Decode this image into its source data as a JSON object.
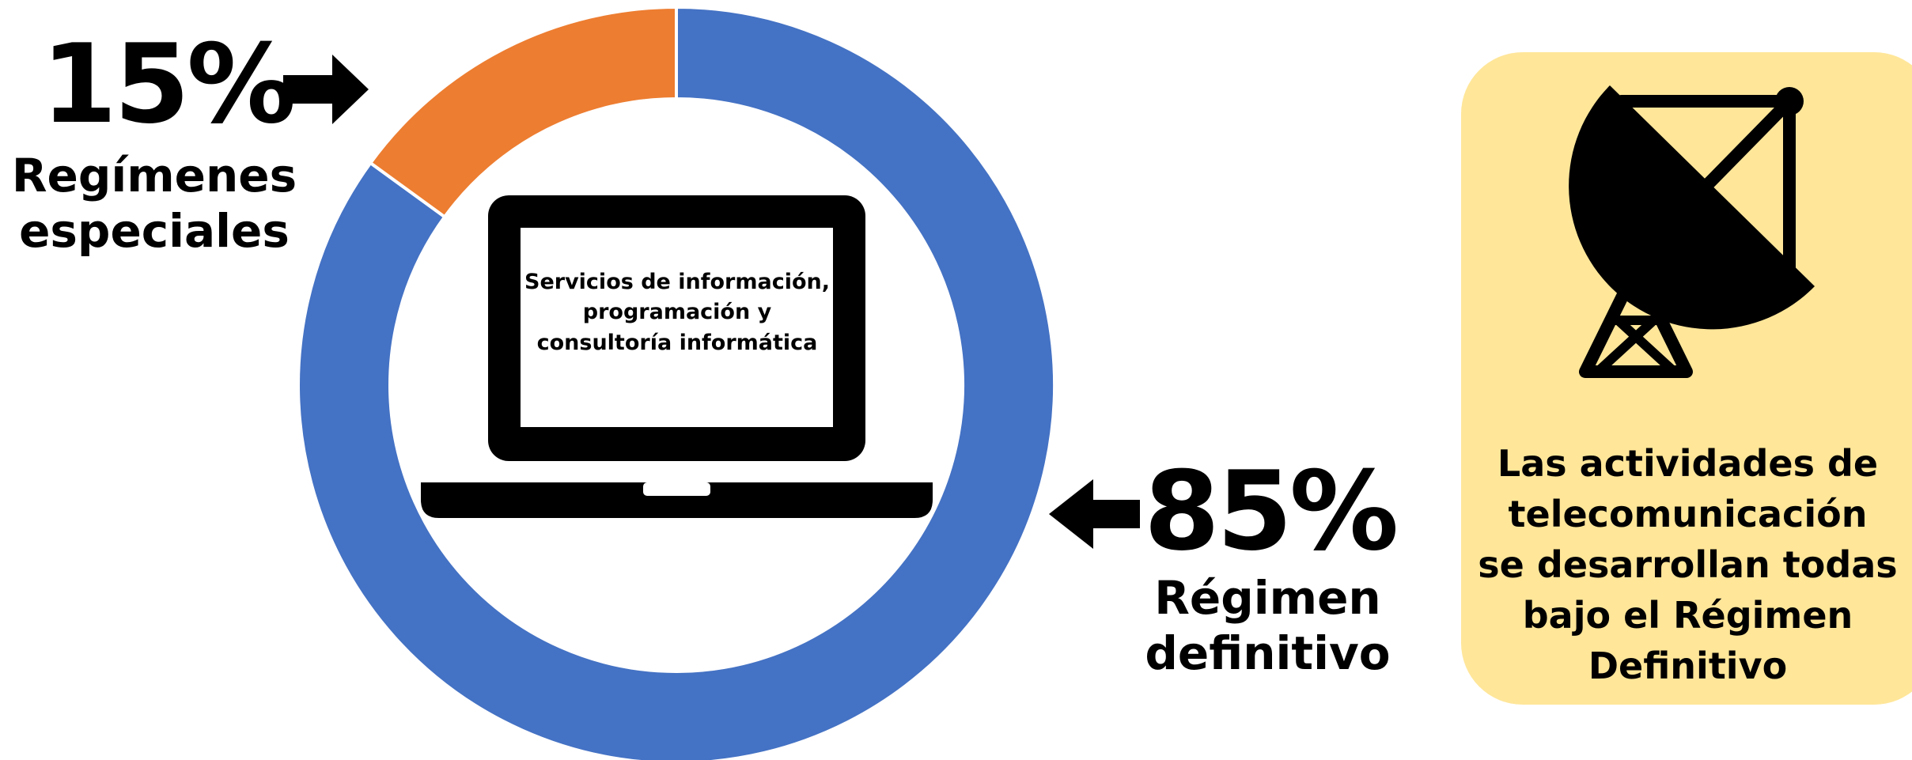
{
  "chart_data": {
    "type": "donut",
    "categories": [
      "Régimen definitivo",
      "Regímenes especiales"
    ],
    "values": [
      85,
      15
    ],
    "value_labels": [
      "85%",
      "15%"
    ],
    "colors": [
      "#4472c4",
      "#ed7d31"
    ],
    "center_text": "Servicios de información, programación y consultoría informática",
    "note": [
      "Las actividades de",
      "telecomunicación",
      "se desarrollan todas",
      "bajo el Régimen",
      "Definitivo"
    ]
  }
}
